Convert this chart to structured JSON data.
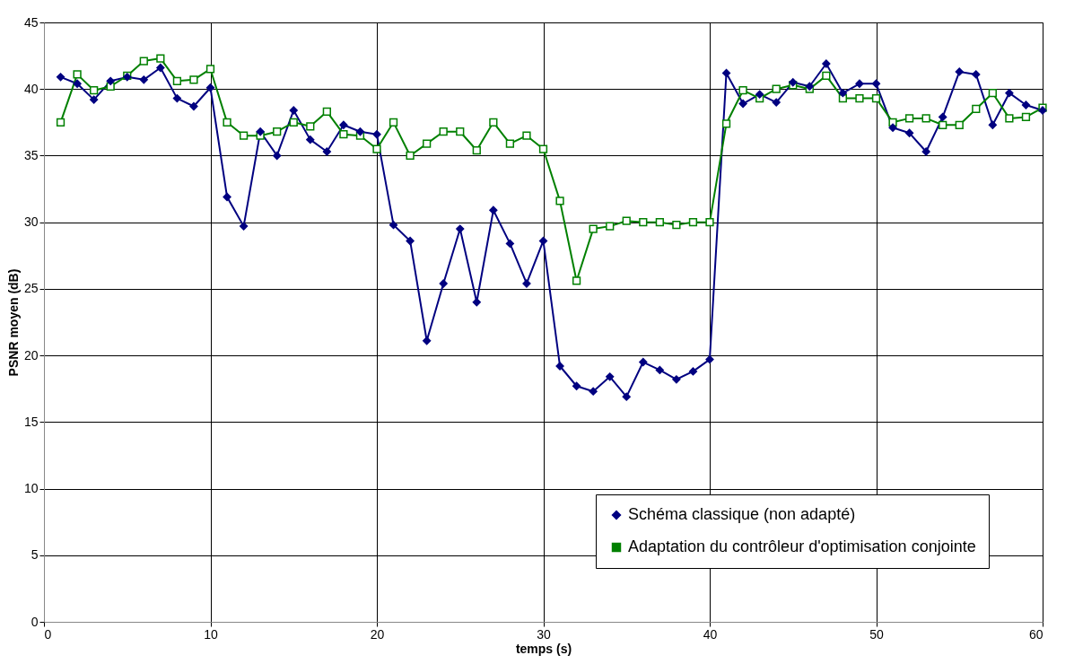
{
  "chart_data": {
    "type": "line",
    "xlabel": "temps (s)",
    "ylabel": "PSNR moyen (dB)",
    "x": [
      1,
      2,
      3,
      4,
      5,
      6,
      7,
      8,
      9,
      10,
      11,
      12,
      13,
      14,
      15,
      16,
      17,
      18,
      19,
      20,
      21,
      22,
      23,
      24,
      25,
      26,
      27,
      28,
      29,
      30,
      31,
      32,
      33,
      34,
      35,
      36,
      37,
      38,
      39,
      40,
      41,
      42,
      43,
      44,
      45,
      46,
      47,
      48,
      49,
      50,
      51,
      52,
      53,
      54,
      55,
      56,
      57,
      58,
      59,
      60
    ],
    "series": [
      {
        "name": "Schéma classique (non adapté)",
        "color": "#000080",
        "marker": "diamond",
        "values": [
          40.9,
          40.4,
          39.2,
          40.6,
          40.9,
          40.7,
          41.6,
          39.3,
          38.7,
          40.1,
          31.9,
          29.7,
          36.8,
          35.0,
          38.4,
          36.2,
          35.3,
          37.3,
          36.8,
          36.6,
          29.8,
          28.6,
          21.1,
          25.4,
          29.5,
          24.0,
          30.9,
          28.4,
          25.4,
          28.6,
          19.2,
          17.7,
          17.3,
          18.4,
          16.9,
          19.5,
          18.9,
          18.2,
          18.8,
          19.7,
          41.2,
          38.9,
          39.6,
          39.0,
          40.5,
          40.2,
          41.9,
          39.7,
          40.4,
          40.4,
          37.1,
          36.7,
          35.3,
          37.9,
          41.3,
          41.1,
          37.3,
          39.7,
          38.8,
          38.4
        ]
      },
      {
        "name": "Adaptation du contrôleur d'optimisation conjointe",
        "color": "#008000",
        "marker": "square",
        "values": [
          37.5,
          41.1,
          39.9,
          40.2,
          41.0,
          42.1,
          42.3,
          40.6,
          40.7,
          41.5,
          37.5,
          36.5,
          36.5,
          36.8,
          37.5,
          37.2,
          38.3,
          36.6,
          36.5,
          35.5,
          37.5,
          35.0,
          35.9,
          36.8,
          36.8,
          35.4,
          37.5,
          35.9,
          36.5,
          35.5,
          31.6,
          25.6,
          29.5,
          29.7,
          30.1,
          30.0,
          30.0,
          29.8,
          30.0,
          30.0,
          37.4,
          39.9,
          39.3,
          40.0,
          40.3,
          40.0,
          41.0,
          39.3,
          39.3,
          39.3,
          37.5,
          37.8,
          37.8,
          37.3,
          37.3,
          38.5,
          39.7,
          37.8,
          37.9,
          38.6
        ]
      }
    ],
    "xlim": [
      0,
      60
    ],
    "xticks": [
      0,
      10,
      20,
      30,
      40,
      50,
      60
    ],
    "ylim": [
      0,
      45
    ],
    "yticks": [
      0,
      5,
      10,
      15,
      20,
      25,
      30,
      35,
      40,
      45
    ],
    "grid": true,
    "legend": "bottom right",
    "line_style": "solid"
  }
}
